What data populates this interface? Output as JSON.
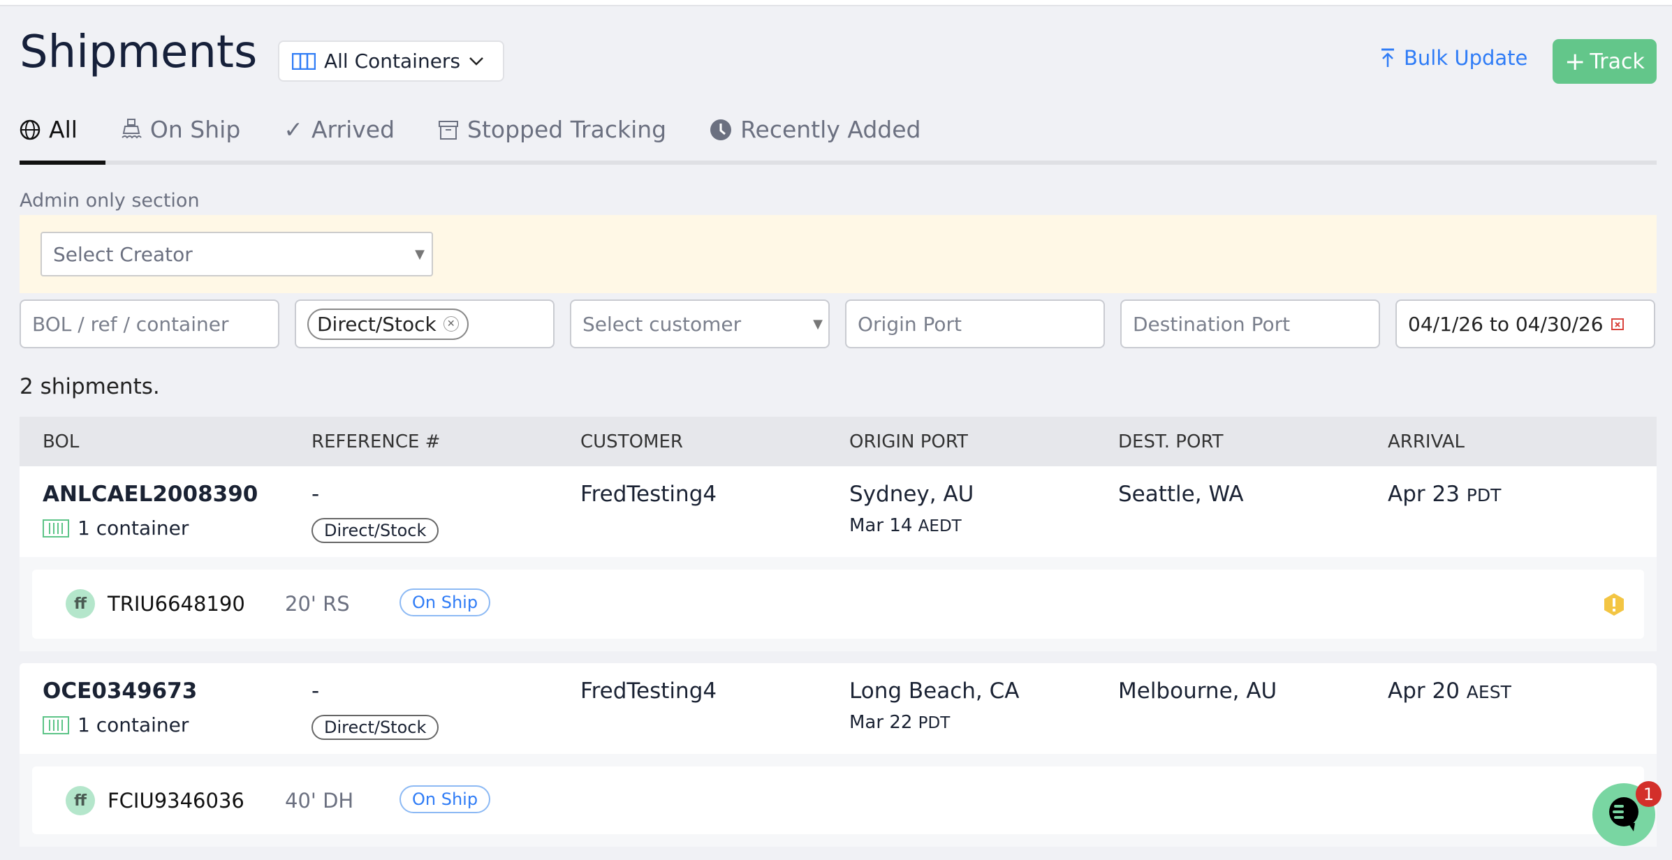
{
  "header": {
    "title": "Shipments",
    "view_select": "All Containers",
    "bulk_update": "Bulk Update",
    "track": "Track"
  },
  "tabs": [
    {
      "label": "All",
      "icon": "globe-icon"
    },
    {
      "label": "On Ship",
      "icon": "ship-icon"
    },
    {
      "label": "Arrived",
      "icon": "check-icon"
    },
    {
      "label": "Stopped Tracking",
      "icon": "archive-icon"
    },
    {
      "label": "Recently Added",
      "icon": "clock-icon"
    }
  ],
  "admin": {
    "label": "Admin only section",
    "creator_placeholder": "Select Creator"
  },
  "filters": {
    "search_placeholder": "BOL / ref / container",
    "tag_chip": "Direct/Stock",
    "customer_placeholder": "Select customer",
    "origin_placeholder": "Origin Port",
    "destination_placeholder": "Destination Port",
    "date_range": "04/1/26 to 04/30/26"
  },
  "count_text": "2 shipments.",
  "columns": [
    "BOL",
    "REFERENCE #",
    "CUSTOMER",
    "ORIGIN PORT",
    "DEST. PORT",
    "ARRIVAL"
  ],
  "shipments": [
    {
      "bol": "ANLCAEL2008390",
      "containers": "1 container",
      "reference": "-",
      "tag": "Direct/Stock",
      "customer": "FredTesting4",
      "origin": "Sydney, AU",
      "departure": "Mar 14",
      "departure_tz": "AEDT",
      "destination": "Seattle, WA",
      "arrival": "Apr 23",
      "arrival_tz": "PDT",
      "container": {
        "avatar": "ff",
        "number": "TRIU6648190",
        "type": "20' RS",
        "status": "On Ship",
        "warning": true
      }
    },
    {
      "bol": "OCE0349673",
      "containers": "1 container",
      "reference": "-",
      "tag": "Direct/Stock",
      "customer": "FredTesting4",
      "origin": "Long Beach, CA",
      "departure": "Mar 22",
      "departure_tz": "PDT",
      "destination": "Melbourne, AU",
      "arrival": "Apr 20",
      "arrival_tz": "AEST",
      "container": {
        "avatar": "ff",
        "number": "FCIU9346036",
        "type": "40' DH",
        "status": "On Ship",
        "warning": false
      }
    }
  ],
  "chat": {
    "unread": "1"
  },
  "colors": {
    "accent_green": "#63c68a",
    "link_blue": "#2f7cf6",
    "admin_band": "#fff8e6",
    "warning": "#f3c543",
    "badge_red": "#d32f2a"
  }
}
